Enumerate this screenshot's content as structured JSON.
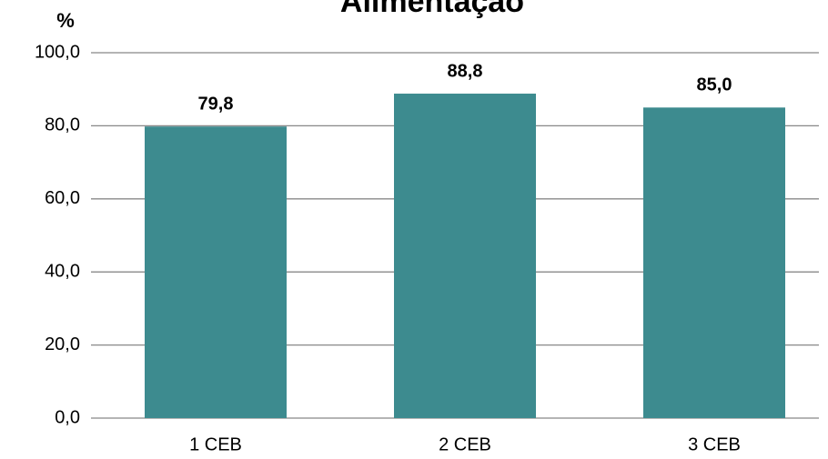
{
  "chart_data": {
    "type": "bar",
    "title": "Alimentação",
    "ylabel": "%",
    "categories": [
      "1 CEB",
      "2 CEB",
      "3 CEB"
    ],
    "values": [
      79.8,
      88.8,
      85.0
    ],
    "value_labels": [
      "79,8",
      "88,8",
      "85,0"
    ],
    "color": "#3d8b8f",
    "ylim": [
      0,
      100
    ],
    "yticks": [
      {
        "value": 0,
        "label": "0,0"
      },
      {
        "value": 20,
        "label": "20,0"
      },
      {
        "value": 40,
        "label": "40,0"
      },
      {
        "value": 60,
        "label": "60,0"
      },
      {
        "value": 80,
        "label": "80,0"
      },
      {
        "value": 100,
        "label": "100,0"
      }
    ],
    "grid": true
  }
}
